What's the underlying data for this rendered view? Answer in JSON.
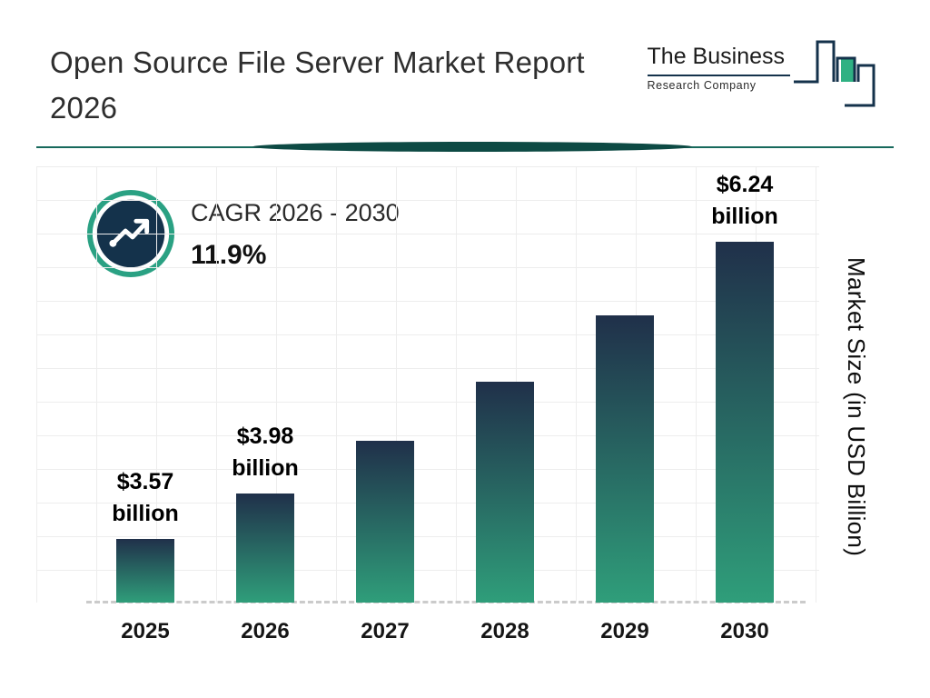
{
  "header": {
    "title_line1": "Open Source File Server Market Report",
    "title_line2": "2026",
    "logo": {
      "line1": "The Business",
      "line2": "Research Company"
    }
  },
  "cagr": {
    "label": "CAGR 2026 - 2030",
    "value": "11.9%"
  },
  "chart_data": {
    "type": "bar",
    "title": "",
    "categories": [
      "2025",
      "2026",
      "2027",
      "2028",
      "2029",
      "2030"
    ],
    "values": [
      3.57,
      3.98,
      4.45,
      4.98,
      5.58,
      6.24
    ],
    "values_estimated": [
      false,
      false,
      true,
      true,
      true,
      false
    ],
    "bar_labels": [
      [
        "$3.57",
        "billion"
      ],
      [
        "$3.98",
        "billion"
      ],
      [
        "",
        ""
      ],
      [
        "",
        ""
      ],
      [
        "",
        ""
      ],
      [
        "$6.24",
        "billion"
      ]
    ],
    "xlabel": "",
    "ylabel": "Market Size (in USD Billion)",
    "ylim": [
      3.0,
      6.9
    ],
    "grid": true,
    "legend": false,
    "bar_gradient": [
      "#20304a",
      "#2f9e7a"
    ]
  },
  "colors": {
    "accent_teal": "#2aa183",
    "dark_navy": "#14324b",
    "divider_teal": "#17695c",
    "lens_dark_teal": "#0d4a44",
    "grid_line": "#ededed",
    "logo_teal": "#2fb183"
  }
}
